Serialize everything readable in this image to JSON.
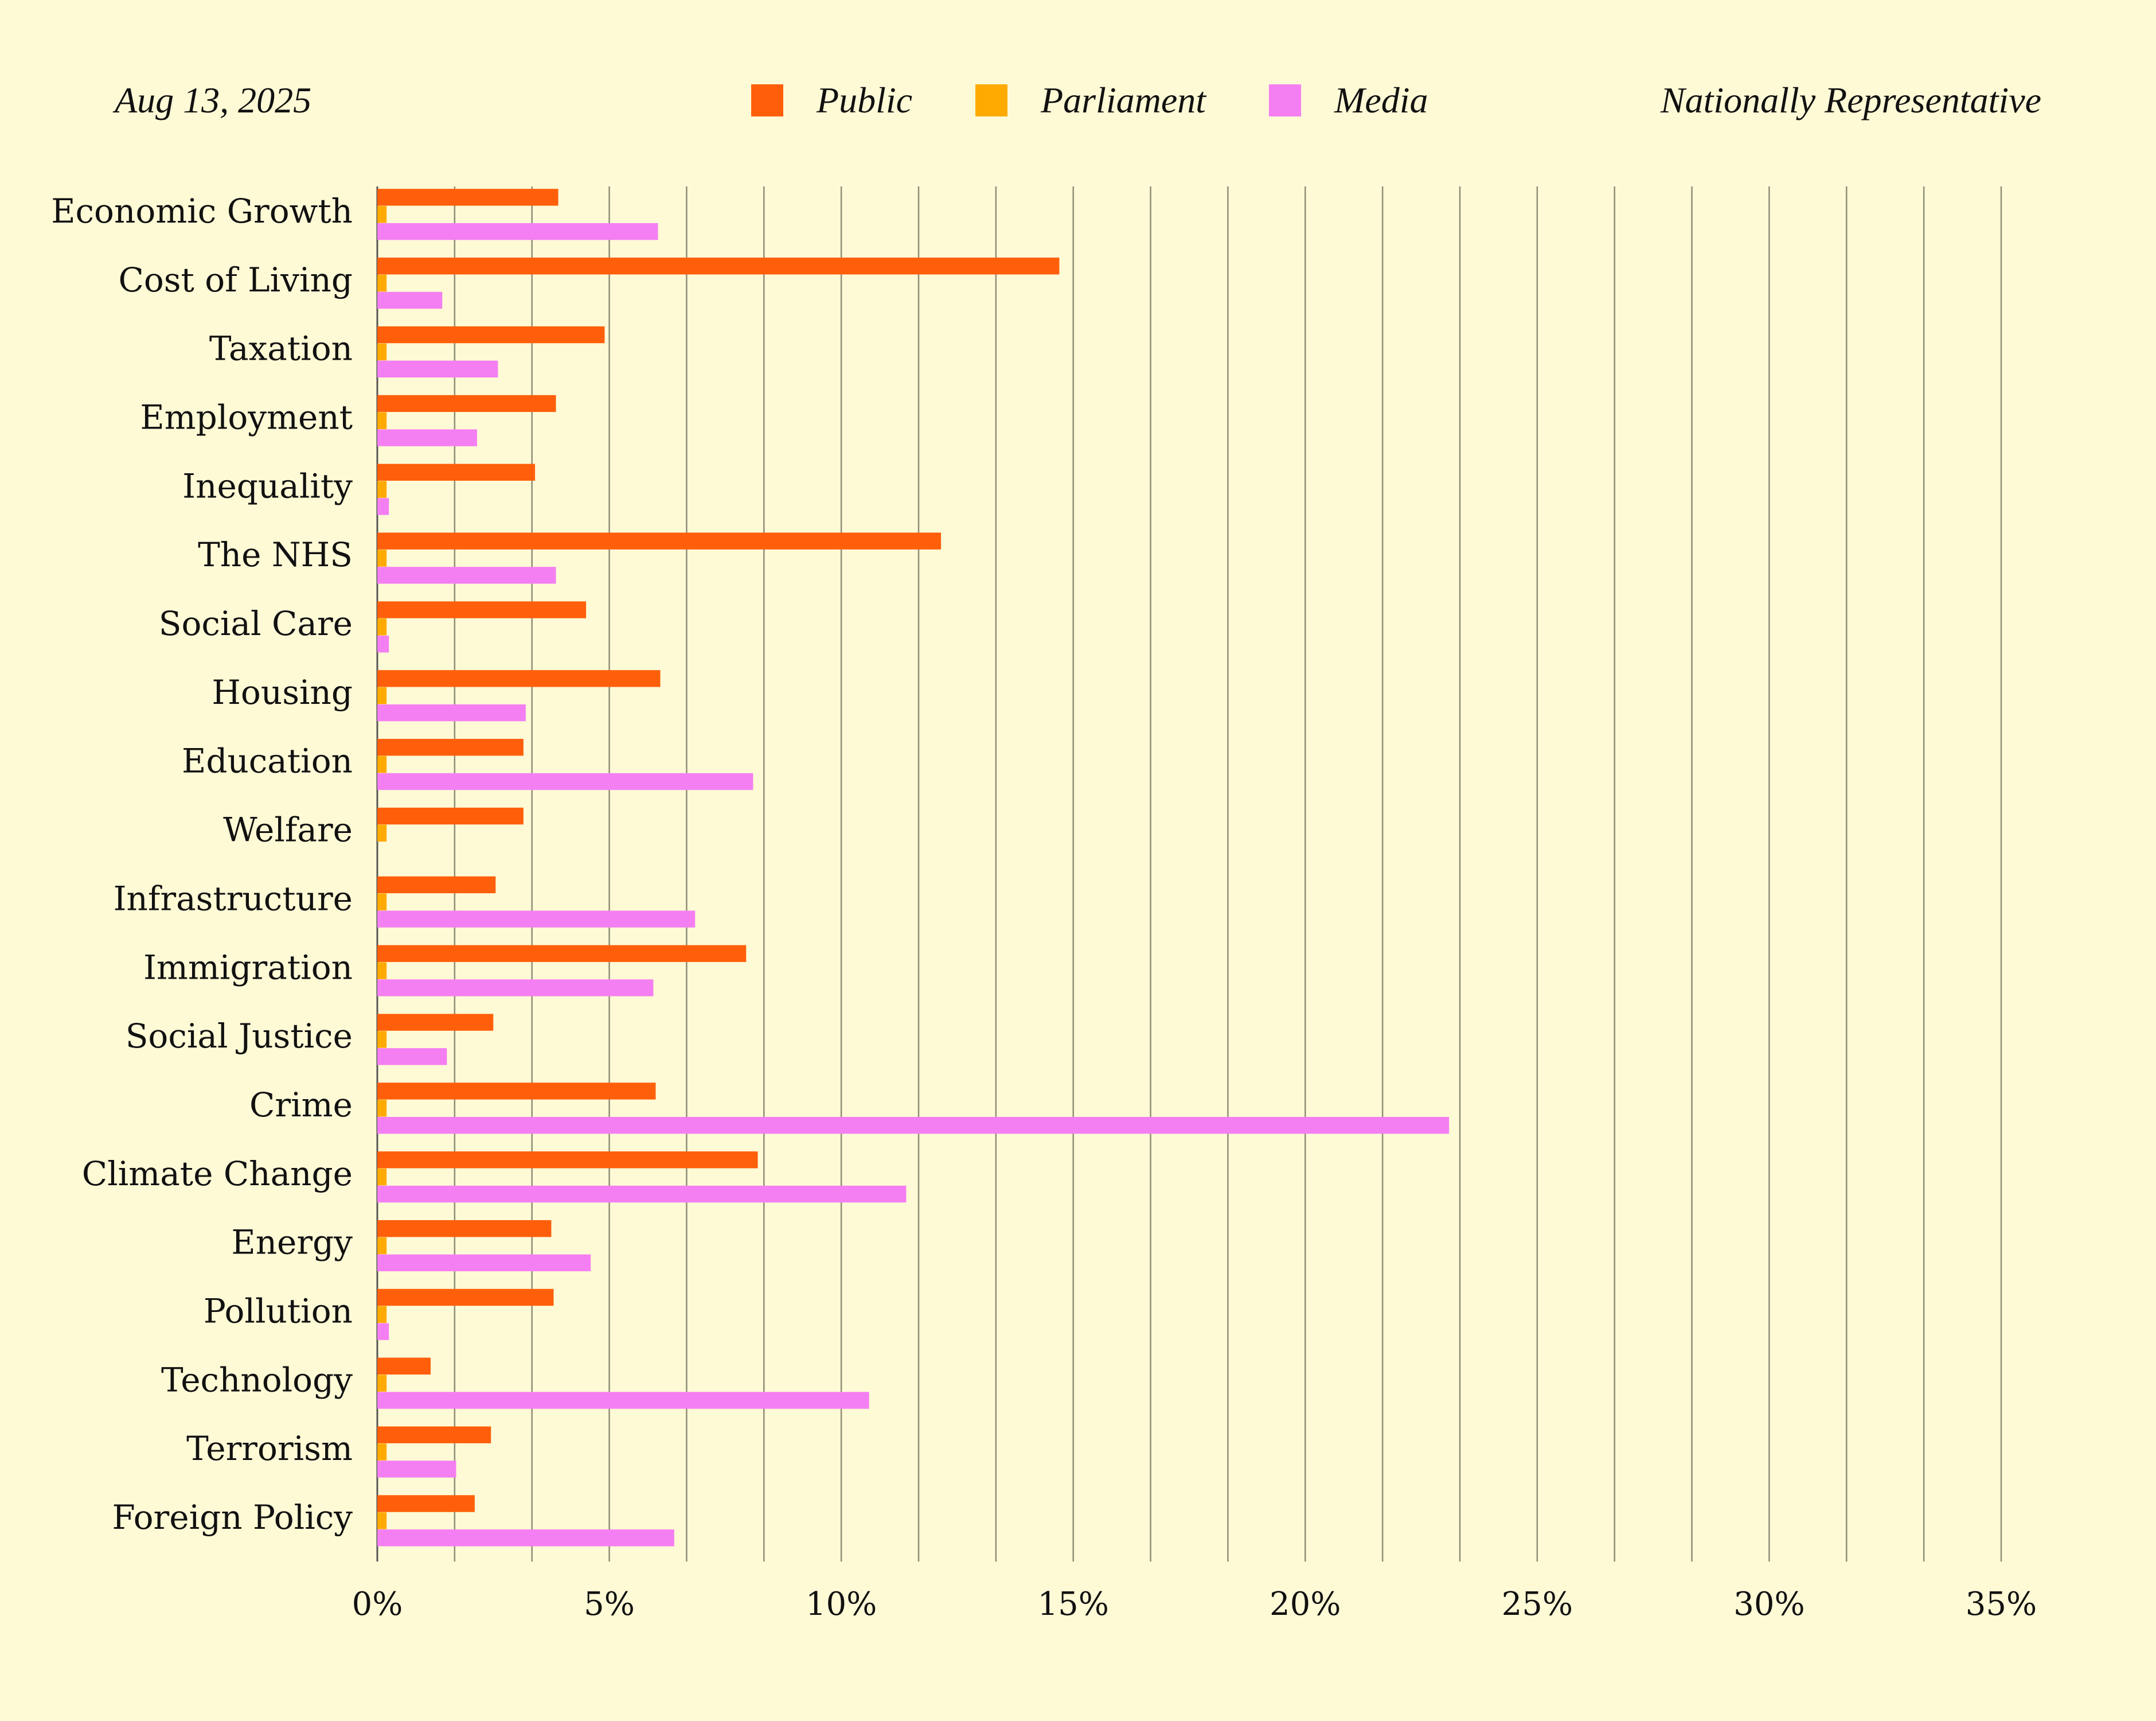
{
  "header": {
    "date": "Aug 13, 2025",
    "sample": "Nationally Representative"
  },
  "legend": [
    {
      "label": "Public",
      "color": "#FF5F0A"
    },
    {
      "label": "Parliament",
      "color": "#FFAA00"
    },
    {
      "label": "Media",
      "color": "#F47FF2"
    }
  ],
  "chart_data": {
    "type": "bar",
    "orientation": "horizontal",
    "categories": [
      "Economic Growth",
      "Cost of Living",
      "Taxation",
      "Employment",
      "Inequality",
      "The NHS",
      "Social Care",
      "Housing",
      "Education",
      "Welfare",
      "Infrastructure",
      "Immigration",
      "Social Justice",
      "Crime",
      "Climate Change",
      "Energy",
      "Pollution",
      "Technology",
      "Terrorism",
      "Foreign Policy"
    ],
    "series": [
      {
        "name": "Public",
        "color": "#FF5F0A",
        "values": [
          3.9,
          14.7,
          4.9,
          3.85,
          3.4,
          12.15,
          4.5,
          6.1,
          3.15,
          3.15,
          2.55,
          7.95,
          2.5,
          6.0,
          8.2,
          3.75,
          3.8,
          1.15,
          2.45,
          2.1
        ]
      },
      {
        "name": "Parliament",
        "color": "#FFAA00",
        "values": [
          0.2,
          0.2,
          0.2,
          0.2,
          0.2,
          0.2,
          0.2,
          0.2,
          0.2,
          0.2,
          0.2,
          0.2,
          0.2,
          0.2,
          0.2,
          0.2,
          0.2,
          0.2,
          0.2,
          0.2
        ]
      },
      {
        "name": "Media",
        "color": "#F47FF2",
        "values": [
          6.05,
          1.4,
          2.6,
          2.15,
          0.25,
          3.85,
          0.25,
          3.2,
          8.1,
          0,
          6.85,
          5.95,
          1.5,
          23.1,
          11.4,
          4.6,
          0.25,
          10.6,
          1.7,
          6.4
        ]
      }
    ],
    "x_ticks": [
      "0%",
      "5%",
      "10%",
      "15%",
      "20%",
      "25%",
      "30%",
      "35%"
    ],
    "xlim": [
      0,
      35
    ],
    "grid_step": 1.666667,
    "grid": true,
    "legend_position": "top-center"
  }
}
